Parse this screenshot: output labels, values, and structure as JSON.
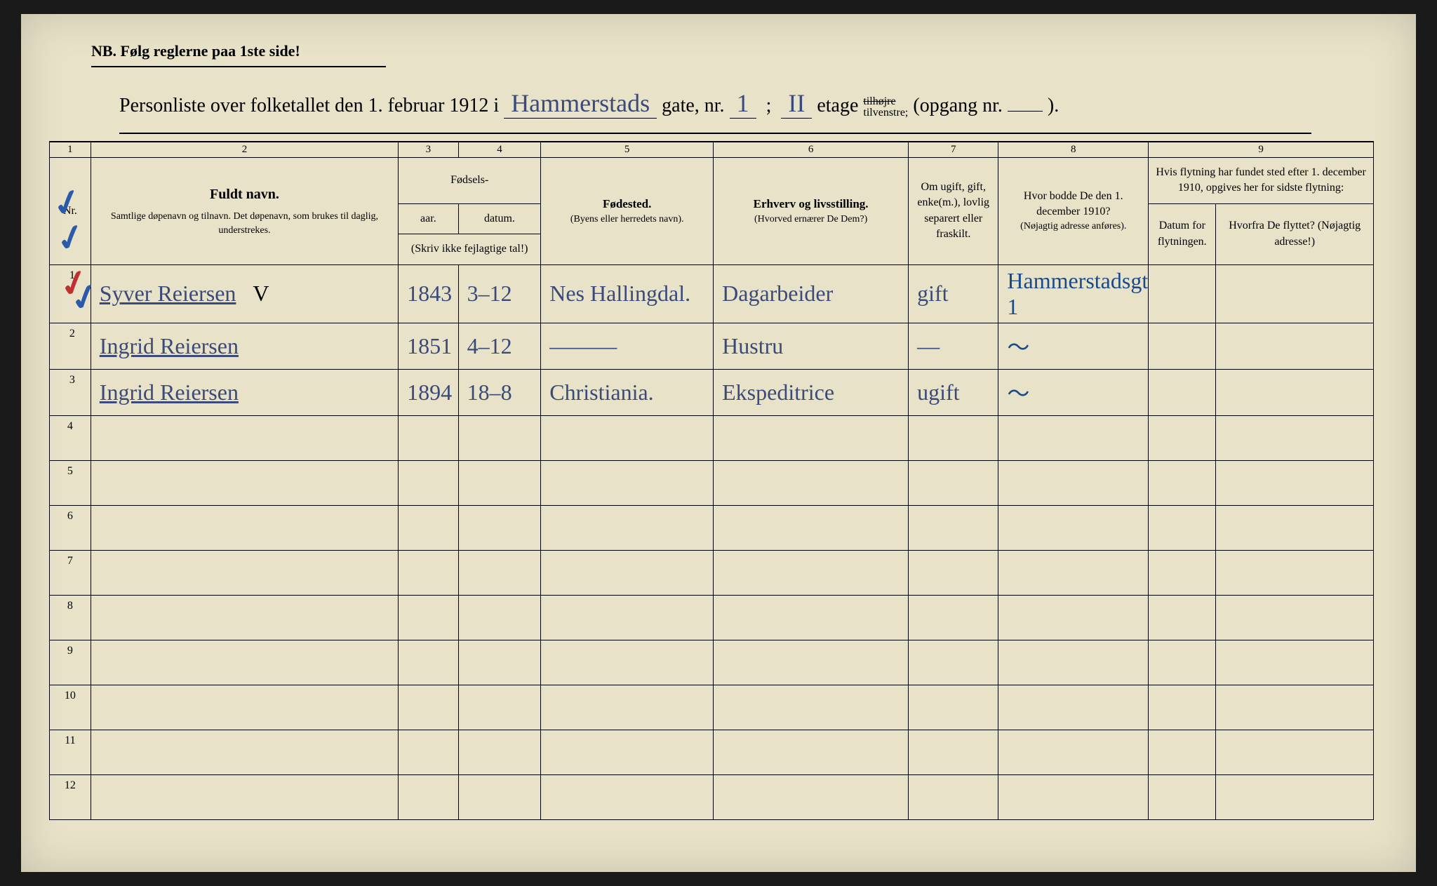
{
  "header": {
    "nb": "NB.   Følg reglerne paa 1ste side!",
    "title_prefix": "Personliste over folketallet den 1. februar 1912 i",
    "street": "Hammerstads",
    "gate_label": "gate, nr.",
    "gate_nr": "1",
    "etage_nr": "II",
    "etage_label": "etage",
    "tilhojre": "tilhøjre",
    "tilvenstre": "tilvenstre;",
    "opgang": "(opgang  nr.",
    "closing": ")."
  },
  "columns": {
    "c1": "1",
    "c2": "2",
    "c3": "3",
    "c4": "4",
    "c5": "5",
    "c6": "6",
    "c7": "7",
    "c8": "8",
    "c9": "9",
    "nr": "Nr.",
    "fuldt_navn": "Fuldt navn.",
    "fuldt_sub": "Samtlige døpenavn og tilnavn. Det døpenavn, som brukes til daglig, understrekes.",
    "fodsels": "Fødsels-",
    "aar": "aar.",
    "datum": "datum.",
    "skriv": "(Skriv ikke fejlagtige tal!)",
    "fodested": "Fødested.",
    "fodested_sub": "(Byens eller herredets navn).",
    "erhverv": "Erhverv og livsstilling.",
    "erhverv_sub": "(Hvorved ernærer De Dem?)",
    "om_ugift": "Om ugift, gift, enke(m.), lovlig separert eller fraskilt.",
    "hvor_bodde": "Hvor bodde De den 1. december 1910?",
    "hvor_sub": "(Nøjagtig adresse anføres).",
    "flytning": "Hvis flytning har fundet sted efter 1. december 1910, opgives her for sidste flytning:",
    "datum_flyt": "Datum for flytningen.",
    "hvorfra": "Hvorfra De flyttet? (Nøjagtig adresse!)"
  },
  "rows": [
    {
      "nr": "1",
      "navn": "Syver Reiersen",
      "mark": "V",
      "aar": "1843",
      "datum": "3–12",
      "sted": "Nes Hallingdal.",
      "erhverv": "Dagarbeider",
      "status": "gift",
      "bodde": "Hammerstadsgt 1"
    },
    {
      "nr": "2",
      "navn": "Ingrid Reiersen",
      "mark": "",
      "aar": "1851",
      "datum": "4–12",
      "sted": "———",
      "erhverv": "Hustru",
      "status": "—",
      "bodde": "〜"
    },
    {
      "nr": "3",
      "navn": "Ingrid Reiersen",
      "mark": "",
      "aar": "1894",
      "datum": "18–8",
      "sted": "Christiania.",
      "erhverv": "Ekspeditrice",
      "status": "ugift",
      "bodde": "〜"
    }
  ],
  "empty_rows": [
    "4",
    "5",
    "6",
    "7",
    "8",
    "9",
    "10",
    "11",
    "12"
  ],
  "colwidths": {
    "nr": "55px",
    "navn": "410px",
    "aar": "80px",
    "datum": "110px",
    "sted": "230px",
    "erhverv": "260px",
    "status": "120px",
    "bodde": "200px",
    "flytdat": "90px",
    "hvorfra": "210px"
  }
}
